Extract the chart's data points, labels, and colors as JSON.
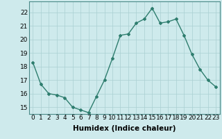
{
  "x": [
    0,
    1,
    2,
    3,
    4,
    5,
    6,
    7,
    8,
    9,
    10,
    11,
    12,
    13,
    14,
    15,
    16,
    17,
    18,
    19,
    20,
    21,
    22,
    23
  ],
  "y": [
    18.3,
    16.7,
    16.0,
    15.9,
    15.7,
    15.0,
    14.8,
    14.6,
    15.8,
    17.0,
    18.6,
    20.3,
    20.4,
    21.2,
    21.5,
    22.3,
    21.2,
    21.3,
    21.5,
    20.3,
    18.9,
    17.8,
    17.0,
    16.5
  ],
  "line_color": "#2e7d6e",
  "marker": "D",
  "marker_size": 2.0,
  "bg_color": "#ceeaec",
  "grid_color": "#aacfd2",
  "xlabel": "Humidex (Indice chaleur)",
  "xlabel_fontsize": 7.5,
  "ylabel_ticks": [
    15,
    16,
    17,
    18,
    19,
    20,
    21,
    22
  ],
  "xtick_labels": [
    "0",
    "1",
    "2",
    "3",
    "4",
    "5",
    "6",
    "7",
    "8",
    "9",
    "10",
    "11",
    "12",
    "13",
    "14",
    "15",
    "16",
    "17",
    "18",
    "19",
    "20",
    "21",
    "22",
    "23"
  ],
  "ylim": [
    14.5,
    22.8
  ],
  "xlim": [
    -0.5,
    23.5
  ],
  "tick_fontsize": 6.5,
  "line_width": 1.0
}
